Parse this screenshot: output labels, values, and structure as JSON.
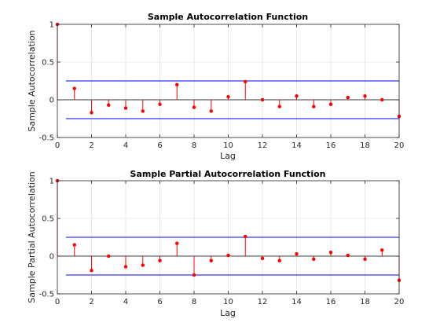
{
  "chart_data": [
    {
      "type": "stem",
      "title": "Sample Autocorrelation Function",
      "xlabel": "Lag",
      "ylabel": "Sample Autocorrelation",
      "xlim": [
        0,
        20
      ],
      "ylim": [
        -0.5,
        1
      ],
      "xticks": [
        0,
        2,
        4,
        6,
        8,
        10,
        12,
        14,
        16,
        18,
        20
      ],
      "yticks": [
        -0.5,
        0,
        0.5,
        1
      ],
      "ytick_labels": [
        "-0.5",
        "0",
        "0.5",
        "1"
      ],
      "grid": true,
      "lags": [
        0,
        1,
        2,
        3,
        4,
        5,
        6,
        7,
        8,
        9,
        10,
        11,
        12,
        13,
        14,
        15,
        16,
        17,
        18,
        19,
        20
      ],
      "values": [
        1.0,
        0.15,
        -0.17,
        -0.07,
        -0.11,
        -0.15,
        -0.06,
        0.2,
        -0.1,
        -0.15,
        0.04,
        0.24,
        0.0,
        -0.09,
        0.05,
        -0.09,
        -0.06,
        0.03,
        0.05,
        0.0,
        -0.22
      ],
      "confidence_bounds": [
        -0.25,
        0.25
      ],
      "stem_color": "#ff0000",
      "bound_color": "#0000ff"
    },
    {
      "type": "stem",
      "title": "Sample Partial Autocorrelation Function",
      "xlabel": "Lag",
      "ylabel": "Sample Partial Autocorrelation",
      "xlim": [
        0,
        20
      ],
      "ylim": [
        -0.5,
        1
      ],
      "xticks": [
        0,
        2,
        4,
        6,
        8,
        10,
        12,
        14,
        16,
        18,
        20
      ],
      "yticks": [
        -0.5,
        0,
        0.5,
        1
      ],
      "ytick_labels": [
        "-0.5",
        "0",
        "0.5",
        "1"
      ],
      "grid": true,
      "lags": [
        0,
        1,
        2,
        3,
        4,
        5,
        6,
        7,
        8,
        9,
        10,
        11,
        12,
        13,
        14,
        15,
        16,
        17,
        18,
        19,
        20
      ],
      "values": [
        1.0,
        0.15,
        -0.19,
        0.0,
        -0.14,
        -0.12,
        -0.06,
        0.17,
        -0.25,
        -0.06,
        0.01,
        0.26,
        -0.03,
        -0.06,
        0.03,
        -0.04,
        0.05,
        0.01,
        -0.04,
        0.08,
        -0.32
      ],
      "confidence_bounds": [
        -0.25,
        0.25
      ],
      "stem_color": "#ff0000",
      "bound_color": "#0000ff"
    }
  ]
}
